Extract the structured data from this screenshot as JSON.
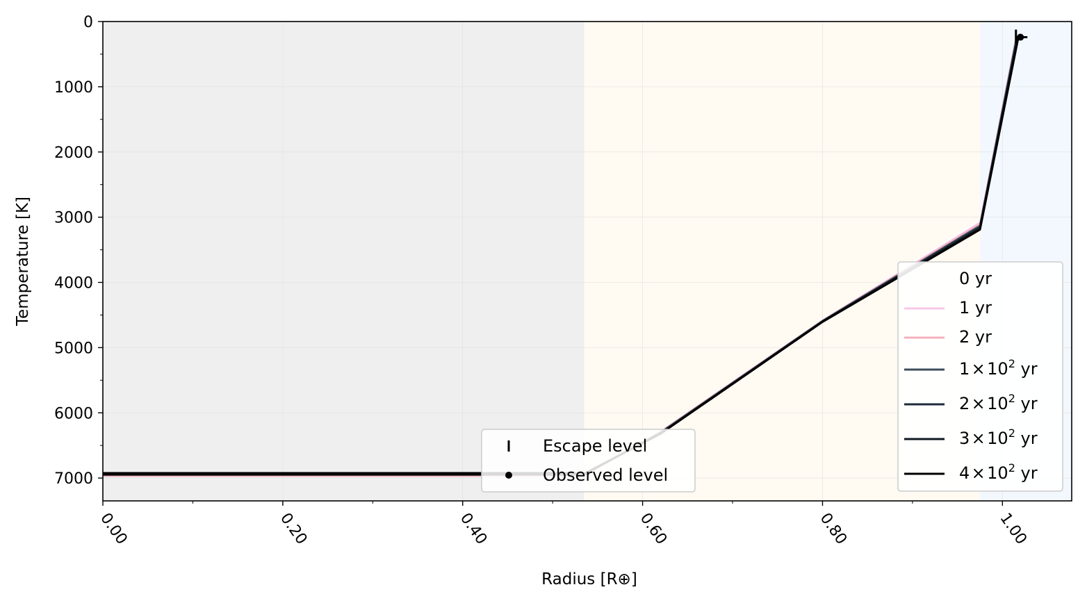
{
  "chart_data": {
    "type": "line",
    "title": "",
    "xlabel": "Radius [R⊕]",
    "ylabel": "Temperature [K]",
    "xlim": [
      0,
      1.077
    ],
    "ylim": [
      7350,
      0
    ],
    "y_inverted": true,
    "grid": true,
    "x_ticks": [
      {
        "value": 0.0,
        "label": "0.00"
      },
      {
        "value": 0.2,
        "label": "0.20"
      },
      {
        "value": 0.4,
        "label": "0.40"
      },
      {
        "value": 0.6,
        "label": "0.60"
      },
      {
        "value": 0.8,
        "label": "0.80"
      },
      {
        "value": 1.0,
        "label": "1.00"
      }
    ],
    "x_minor_ticks": [
      0.1,
      0.3,
      0.5,
      0.7,
      0.9
    ],
    "y_ticks": [
      {
        "value": 0,
        "label": "0"
      },
      {
        "value": 1000,
        "label": "1000"
      },
      {
        "value": 2000,
        "label": "2000"
      },
      {
        "value": 3000,
        "label": "3000"
      },
      {
        "value": 4000,
        "label": "4000"
      },
      {
        "value": 5000,
        "label": "5000"
      },
      {
        "value": 6000,
        "label": "6000"
      },
      {
        "value": 7000,
        "label": "7000"
      }
    ],
    "y_minor_ticks": [
      500,
      1500,
      2500,
      3500,
      4500,
      5500,
      6500
    ],
    "regions": [
      {
        "x0": 0.0,
        "x1": 0.535,
        "color": "#efefef"
      },
      {
        "x0": 0.535,
        "x1": 0.975,
        "color": "#fffaf2"
      },
      {
        "x0": 0.975,
        "x1": 1.077,
        "color": "#f2f8fd"
      }
    ],
    "series": [
      {
        "name": "0 yr",
        "color": "#ffffff",
        "lw": 2.2,
        "points": [
          [
            0.0,
            6960
          ],
          [
            0.535,
            6960
          ],
          [
            0.62,
            6280
          ],
          [
            0.8,
            4580
          ],
          [
            0.975,
            3050
          ],
          [
            1.015,
            250
          ]
        ]
      },
      {
        "name": "1 yr",
        "color": "#f8c8e8",
        "lw": 2.2,
        "points": [
          [
            0.0,
            6965
          ],
          [
            0.535,
            6965
          ],
          [
            0.62,
            6285
          ],
          [
            0.8,
            4580
          ],
          [
            0.975,
            3080
          ],
          [
            1.015,
            240
          ]
        ]
      },
      {
        "name": "2 yr",
        "color": "#f4b0bc",
        "lw": 2.2,
        "points": [
          [
            0.0,
            6970
          ],
          [
            0.535,
            6970
          ],
          [
            0.62,
            6290
          ],
          [
            0.8,
            4585
          ],
          [
            0.975,
            3100
          ],
          [
            1.016,
            235
          ]
        ]
      },
      {
        "name": "1×10² yr",
        "color": "#3c4c5c",
        "lw": 2.6,
        "points": [
          [
            0.0,
            6950
          ],
          [
            0.535,
            6950
          ],
          [
            0.62,
            6300
          ],
          [
            0.8,
            4590
          ],
          [
            0.975,
            3130
          ],
          [
            1.016,
            230
          ]
        ]
      },
      {
        "name": "2×10² yr",
        "color": "#1e2a38",
        "lw": 2.6,
        "points": [
          [
            0.0,
            6945
          ],
          [
            0.535,
            6945
          ],
          [
            0.62,
            6310
          ],
          [
            0.8,
            4595
          ],
          [
            0.975,
            3150
          ],
          [
            1.017,
            228
          ]
        ]
      },
      {
        "name": "3×10² yr",
        "color": "#101820",
        "lw": 2.8,
        "points": [
          [
            0.0,
            6940
          ],
          [
            0.535,
            6940
          ],
          [
            0.62,
            6315
          ],
          [
            0.8,
            4600
          ],
          [
            0.975,
            3170
          ],
          [
            1.017,
            225
          ]
        ]
      },
      {
        "name": "4×10² yr",
        "color": "#000000",
        "lw": 3.0,
        "points": [
          [
            0.0,
            6935
          ],
          [
            0.535,
            6935
          ],
          [
            0.62,
            6320
          ],
          [
            0.8,
            4605
          ],
          [
            0.975,
            3190
          ],
          [
            1.018,
            222
          ]
        ]
      }
    ],
    "markers": {
      "escape_level": {
        "label": "Escape level",
        "x": 1.015,
        "y": 230
      },
      "observed_level": {
        "label": "Observed level",
        "x": 1.02,
        "y": 240
      }
    },
    "legend_main": {
      "placement": "lower-right",
      "entries": [
        {
          "label": "0 yr",
          "base": "",
          "exp": "",
          "unit": "",
          "color": "#ffffff"
        },
        {
          "label": "1 yr",
          "base": "",
          "exp": "",
          "unit": "",
          "color": "#f8c8e8"
        },
        {
          "label": "2 yr",
          "base": "",
          "exp": "",
          "unit": "",
          "color": "#f4b0bc"
        },
        {
          "label": "",
          "base": "1 × 10",
          "exp": "2",
          "unit": " yr",
          "color": "#3c4c5c"
        },
        {
          "label": "",
          "base": "2 × 10",
          "exp": "2",
          "unit": " yr",
          "color": "#1e2a38"
        },
        {
          "label": "",
          "base": "3 × 10",
          "exp": "2",
          "unit": " yr",
          "color": "#101820"
        },
        {
          "label": "",
          "base": "4 × 10",
          "exp": "2",
          "unit": " yr",
          "color": "#000000"
        }
      ]
    },
    "legend_markers": {
      "placement": "lower-center",
      "entries": [
        {
          "label": "Escape level",
          "symbol": "vline"
        },
        {
          "label": "Observed level",
          "symbol": "dot"
        }
      ]
    }
  }
}
